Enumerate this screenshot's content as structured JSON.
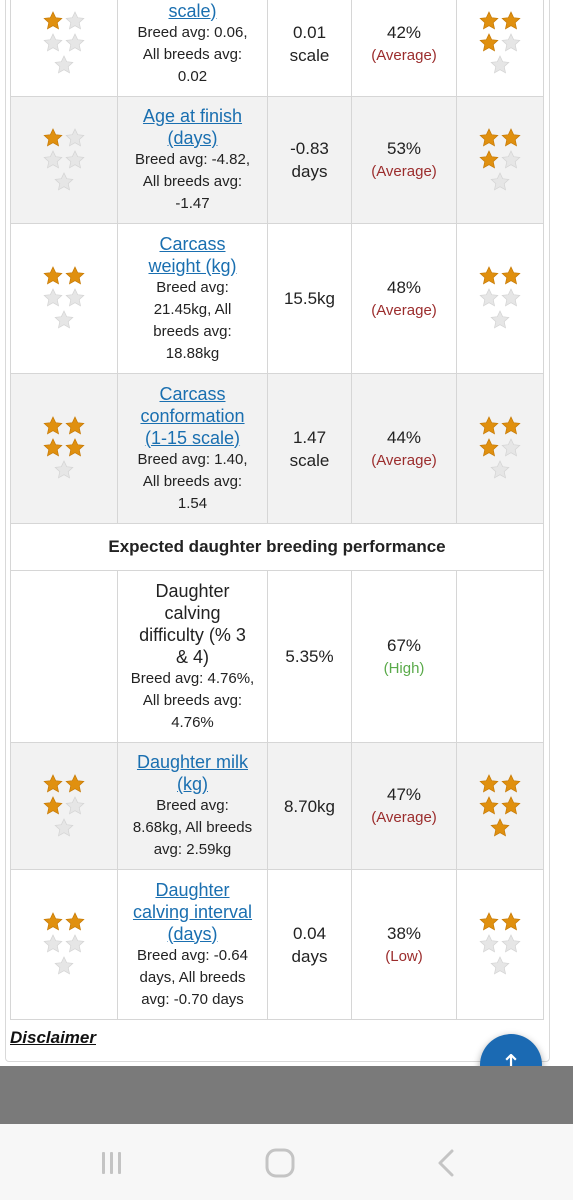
{
  "colors": {
    "star_filled": "#e0900f",
    "star_empty": "#e6e6e6",
    "link": "#1a6fb0",
    "rel_average": "#9b2c2c",
    "rel_high": "#5aaa4a",
    "rel_low": "#9b2c2c",
    "fab": "#1b6ab3"
  },
  "rows": [
    {
      "id": "scale-cut",
      "stars_left": 1,
      "trait": "scale)",
      "trait_is_link": true,
      "avg_lines": [
        "Breed avg: 0.06,",
        "All breeds avg:",
        "0.02"
      ],
      "value": "0.01",
      "unit": "scale",
      "reliability": "42%",
      "reliability_category": "(Average)",
      "stars_right": 3,
      "shaded": false
    },
    {
      "id": "age-at-finish",
      "stars_left": 1,
      "trait_lines": [
        "Age at finish",
        "(days)"
      ],
      "trait_is_link": true,
      "avg_lines": [
        "Breed avg: -4.82,",
        "All breeds avg:",
        "-1.47"
      ],
      "value": "-0.83",
      "unit": "days",
      "reliability": "53%",
      "reliability_category": "(Average)",
      "stars_right": 3,
      "shaded": true
    },
    {
      "id": "carcass-weight",
      "stars_left": 2,
      "trait_lines": [
        "Carcass",
        "weight (kg)"
      ],
      "trait_is_link": true,
      "avg_lines": [
        "Breed avg:",
        "21.45kg, All",
        "breeds avg:",
        "18.88kg"
      ],
      "value": "15.5kg",
      "unit": "",
      "reliability": "48%",
      "reliability_category": "(Average)",
      "stars_right": 2,
      "shaded": false
    },
    {
      "id": "carcass-conformation",
      "stars_left": 4,
      "trait_lines": [
        "Carcass",
        "conformation",
        "(1-15 scale)"
      ],
      "trait_is_link": true,
      "avg_lines": [
        "Breed avg: 1.40,",
        "All breeds avg:",
        "1.54"
      ],
      "value": "1.47",
      "unit": "scale",
      "reliability": "44%",
      "reliability_category": "(Average)",
      "stars_right": 3,
      "shaded": true
    }
  ],
  "section_title": "Expected daughter breeding performance",
  "daughter_rows": [
    {
      "id": "daughter-calving-difficulty",
      "stars_left": 0,
      "trait_lines": [
        "Daughter",
        "calving",
        "difficulty (% 3",
        "& 4)"
      ],
      "trait_is_link": false,
      "avg_lines": [
        "Breed avg: 4.76%,",
        "All breeds avg:",
        "4.76%"
      ],
      "value": "5.35%",
      "unit": "",
      "reliability": "67%",
      "reliability_category": "(High)",
      "stars_right": 0,
      "shaded": false
    },
    {
      "id": "daughter-milk",
      "stars_left": 3,
      "trait_lines": [
        "Daughter milk",
        "(kg)"
      ],
      "trait_is_link": true,
      "avg_lines": [
        "Breed avg:",
        "8.68kg, All breeds",
        "avg: 2.59kg"
      ],
      "value": "8.70kg",
      "unit": "",
      "reliability": "47%",
      "reliability_category": "(Average)",
      "stars_right": 5,
      "shaded": true
    },
    {
      "id": "daughter-calving-interval",
      "stars_left": 2,
      "trait_lines": [
        "Daughter",
        "calving interval",
        "(days)"
      ],
      "trait_is_link": true,
      "avg_lines": [
        "Breed avg: -0.64",
        "days, All breeds",
        "avg: -0.70 days"
      ],
      "value": "0.04",
      "unit": "days",
      "reliability": "38%",
      "reliability_category": "(Low)",
      "stars_right": 2,
      "shaded": false
    }
  ],
  "disclaimer": "Disclaimer",
  "fab_icon": "arrow-up-icon",
  "fab_glyph": "↑",
  "nav": {
    "recents_icon": "recents-icon",
    "home_icon": "home-icon",
    "back_icon": "back-icon"
  }
}
